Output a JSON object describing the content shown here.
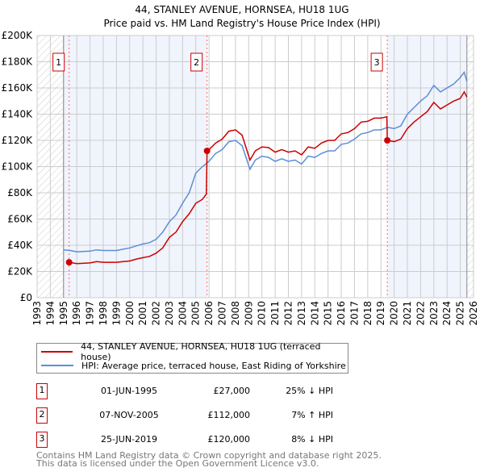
{
  "chart_data": {
    "type": "line",
    "title": "44, STANLEY AVENUE, HORNSEA, HU18 1UG",
    "subtitle": "Price paid vs. HM Land Registry's House Price Index (HPI)",
    "xlim": [
      1993,
      2026
    ],
    "ylim": [
      0,
      200000
    ],
    "x_ticks": [
      "1993",
      "1994",
      "1995",
      "1996",
      "1997",
      "1998",
      "1999",
      "2000",
      "2001",
      "2002",
      "2003",
      "2004",
      "2005",
      "2006",
      "2007",
      "2008",
      "2009",
      "2010",
      "2011",
      "2012",
      "2013",
      "2014",
      "2015",
      "2016",
      "2017",
      "2018",
      "2019",
      "2020",
      "2021",
      "2022",
      "2023",
      "2024",
      "2025",
      "2026"
    ],
    "y_ticks": [
      {
        "value": 0,
        "label": "£0"
      },
      {
        "value": 20000,
        "label": "£20K"
      },
      {
        "value": 40000,
        "label": "£40K"
      },
      {
        "value": 60000,
        "label": "£60K"
      },
      {
        "value": 80000,
        "label": "£80K"
      },
      {
        "value": 100000,
        "label": "£100K"
      },
      {
        "value": 120000,
        "label": "£120K"
      },
      {
        "value": 140000,
        "label": "£140K"
      },
      {
        "value": 160000,
        "label": "£160K"
      },
      {
        "value": 180000,
        "label": "£180K"
      },
      {
        "value": 200000,
        "label": "£200K"
      }
    ],
    "grid": true,
    "data_range": [
      1995.0,
      2025.5
    ],
    "shaded_bands": [
      [
        1995.0,
        2005.85
      ],
      [
        2019.48,
        2025.5
      ]
    ],
    "series": [
      {
        "name": "44, STANLEY AVENUE, HORNSEA, HU18 1UG (terraced house)",
        "color": "#cc0000",
        "x": [
          1995.42,
          1996,
          1997,
          1997.5,
          1998,
          1999,
          1999.5,
          2000,
          2000.5,
          2001,
          2001.5,
          2002,
          2002.5,
          2003,
          2003.5,
          2004,
          2004.5,
          2005,
          2005.5,
          2005.8,
          2005.85,
          2006,
          2006.5,
          2007,
          2007.5,
          2008,
          2008.5,
          2009.1,
          2009.5,
          2010,
          2010.5,
          2011,
          2011.5,
          2012,
          2012.5,
          2013,
          2013.5,
          2014,
          2014.5,
          2015,
          2015.5,
          2016,
          2016.5,
          2017,
          2017.5,
          2018,
          2018.5,
          2019,
          2019.45,
          2019.48,
          2020,
          2020.5,
          2021,
          2021.5,
          2022,
          2022.5,
          2023,
          2023.5,
          2024,
          2024.5,
          2025,
          2025.3,
          2025.5
        ],
        "y": [
          27000,
          26000,
          26500,
          27500,
          27000,
          27000,
          27500,
          28000,
          29500,
          30500,
          31500,
          34000,
          38000,
          46000,
          50000,
          58000,
          64000,
          72000,
          75000,
          79000,
          112000,
          113000,
          118000,
          121000,
          127000,
          128000,
          124000,
          105000,
          112000,
          115000,
          114500,
          111000,
          113000,
          111000,
          112000,
          109000,
          115000,
          114000,
          118000,
          120000,
          120000,
          125000,
          126000,
          129000,
          134000,
          134500,
          137000,
          137000,
          138000,
          120000,
          119000,
          121000,
          129000,
          134000,
          138000,
          142000,
          149000,
          144000,
          147000,
          150000,
          152000,
          157000,
          153000
        ]
      },
      {
        "name": "HPI: Average price, terraced house, East Riding of Yorkshire",
        "color": "#5b8fd4",
        "x": [
          1995.0,
          1995.5,
          1996,
          1997,
          1997.5,
          1998,
          1999,
          1999.5,
          2000,
          2000.5,
          2001,
          2001.5,
          2002,
          2002.5,
          2003,
          2003.5,
          2004,
          2004.5,
          2005,
          2005.5,
          2006,
          2006.5,
          2007,
          2007.5,
          2008,
          2008.5,
          2009.1,
          2009.5,
          2010,
          2010.5,
          2011,
          2011.5,
          2012,
          2012.5,
          2013,
          2013.5,
          2014,
          2014.5,
          2015,
          2015.5,
          2016,
          2016.5,
          2017,
          2017.5,
          2018,
          2018.5,
          2019,
          2019.5,
          2020,
          2020.5,
          2021,
          2021.5,
          2022,
          2022.5,
          2023,
          2023.5,
          2024,
          2024.5,
          2025,
          2025.3,
          2025.5
        ],
        "y": [
          36500,
          36000,
          35000,
          35500,
          36500,
          36000,
          36000,
          37000,
          38000,
          39500,
          41000,
          42000,
          44500,
          50000,
          58000,
          63000,
          72000,
          80000,
          95000,
          100000,
          104000,
          110000,
          113000,
          119000,
          120000,
          116000,
          98000,
          105000,
          108000,
          107000,
          104000,
          106000,
          104000,
          105000,
          102000,
          108000,
          107000,
          110000,
          112000,
          112000,
          117000,
          118000,
          121000,
          125000,
          126000,
          128000,
          128000,
          130000,
          129000,
          131000,
          140000,
          145000,
          150000,
          154000,
          162000,
          157000,
          160000,
          163000,
          168000,
          172000,
          165000
        ]
      }
    ],
    "sales": [
      {
        "num": "1",
        "x": 1995.42,
        "y": 27000
      },
      {
        "num": "2",
        "x": 2005.85,
        "y": 112000
      },
      {
        "num": "3",
        "x": 2019.48,
        "y": 120000
      }
    ]
  },
  "legend": {
    "property": "44, STANLEY AVENUE, HORNSEA, HU18 1UG (terraced house)",
    "hpi": "HPI: Average price, terraced house, East Riding of Yorkshire"
  },
  "table": [
    {
      "num": "1",
      "date": "01-JUN-1995",
      "price": "£27,000",
      "hpi": "25% ↓ HPI"
    },
    {
      "num": "2",
      "date": "07-NOV-2005",
      "price": "£112,000",
      "hpi": "7% ↑ HPI"
    },
    {
      "num": "3",
      "date": "25-JUN-2019",
      "price": "£120,000",
      "hpi": "8% ↓ HPI"
    }
  ],
  "footer": {
    "line1": "Contains HM Land Registry data © Crown copyright and database right 2025.",
    "line2": "This data is licensed under the Open Government Licence v3.0."
  }
}
